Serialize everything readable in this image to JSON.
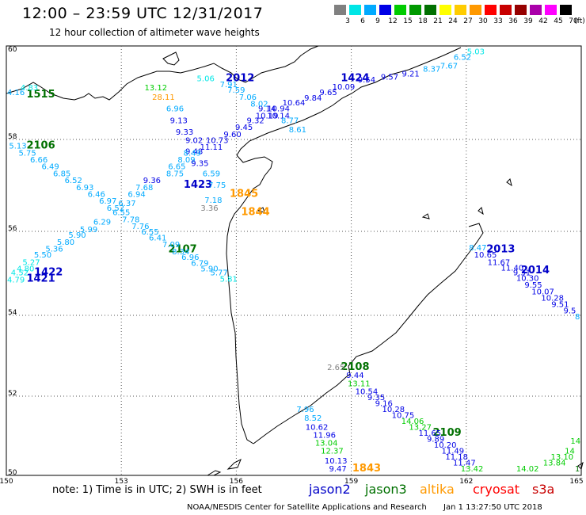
{
  "title": "12:00 – 23:59 UTC 12/31/2017",
  "subtitle": "12 hour collection of altimeter wave heights",
  "legend": {
    "unit": "(ft)",
    "bins": [
      {
        "label": "3",
        "color": "#808080"
      },
      {
        "label": "6",
        "color": "#00e6e6"
      },
      {
        "label": "9",
        "color": "#00aaff"
      },
      {
        "label": "12",
        "color": "#0000e6"
      },
      {
        "label": "15",
        "color": "#00cc00"
      },
      {
        "label": "18",
        "color": "#009900"
      },
      {
        "label": "21",
        "color": "#007000"
      },
      {
        "label": "24",
        "color": "#ffff00"
      },
      {
        "label": "27",
        "color": "#ffcc00"
      },
      {
        "label": "30",
        "color": "#ff9900"
      },
      {
        "label": "33",
        "color": "#ff0000"
      },
      {
        "label": "36",
        "color": "#c80000"
      },
      {
        "label": "39",
        "color": "#960000"
      },
      {
        "label": "42",
        "color": "#aa00aa"
      },
      {
        "label": "45",
        "color": "#ff00ff"
      },
      {
        "label": "70",
        "color": "#000000"
      }
    ]
  },
  "map": {
    "lon_ticks": [
      "150",
      "153",
      "156",
      "159",
      "162",
      "165"
    ],
    "lat_ticks": [
      "60",
      "58",
      "56",
      "54",
      "52",
      "50"
    ]
  },
  "labels": [
    {
      "t": "2012",
      "lon": 156.1,
      "lat": 59.25,
      "c": "#0000c8",
      "big": true
    },
    {
      "t": "1424",
      "lon": 159.1,
      "lat": 59.25,
      "c": "#0000c8",
      "big": true
    },
    {
      "t": "1515",
      "lon": 150.9,
      "lat": 58.9,
      "c": "#007000",
      "big": true
    },
    {
      "t": "2106",
      "lon": 150.9,
      "lat": 57.8,
      "c": "#007000",
      "big": true
    },
    {
      "t": "1423",
      "lon": 155.0,
      "lat": 56.95,
      "c": "#0000c8",
      "big": true
    },
    {
      "t": "1845",
      "lon": 156.2,
      "lat": 56.75,
      "c": "#ff9900",
      "big": true
    },
    {
      "t": "1844",
      "lon": 156.5,
      "lat": 56.35,
      "c": "#ff9900",
      "big": true
    },
    {
      "t": "2107",
      "lon": 154.6,
      "lat": 55.5,
      "c": "#007000",
      "big": true
    },
    {
      "t": "1422",
      "lon": 151.1,
      "lat": 54.95,
      "c": "#0000c8",
      "big": true
    },
    {
      "t": "1421",
      "lon": 150.9,
      "lat": 54.8,
      "c": "#0000c8",
      "big": true
    },
    {
      "t": "2013",
      "lon": 162.9,
      "lat": 55.5,
      "c": "#0000c8",
      "big": true
    },
    {
      "t": "2014",
      "lon": 163.8,
      "lat": 55.0,
      "c": "#0000c8",
      "big": true
    },
    {
      "t": "2108",
      "lon": 159.1,
      "lat": 52.65,
      "c": "#007000",
      "big": true
    },
    {
      "t": "2109",
      "lon": 161.5,
      "lat": 51.0,
      "c": "#007000",
      "big": true
    },
    {
      "t": "1843",
      "lon": 159.4,
      "lat": 50.1,
      "c": "#ff9900",
      "big": true
    },
    {
      "t": "6.52",
      "lon": 161.9,
      "lat": 59.7,
      "c": "#00aaff"
    },
    {
      "t": "5.03",
      "lon": 162.25,
      "lat": 59.82,
      "c": "#00e6e6"
    },
    {
      "t": "7.67",
      "lon": 161.55,
      "lat": 59.52,
      "c": "#00aaff"
    },
    {
      "t": "8.37",
      "lon": 161.1,
      "lat": 59.45,
      "c": "#00aaff"
    },
    {
      "t": "9.21",
      "lon": 160.55,
      "lat": 59.35,
      "c": "#0000e6"
    },
    {
      "t": "9.57",
      "lon": 160.0,
      "lat": 59.28,
      "c": "#0000e6"
    },
    {
      "t": "9.54",
      "lon": 159.4,
      "lat": 59.22,
      "c": "#0000e6"
    },
    {
      "t": "10.09",
      "lon": 158.8,
      "lat": 59.07,
      "c": "#0000e6"
    },
    {
      "t": "9.65",
      "lon": 158.4,
      "lat": 58.95,
      "c": "#0000e6"
    },
    {
      "t": "9.84",
      "lon": 158.0,
      "lat": 58.83,
      "c": "#0000e6"
    },
    {
      "t": "10.64",
      "lon": 157.5,
      "lat": 58.73,
      "c": "#0000e6"
    },
    {
      "t": "10.94",
      "lon": 157.1,
      "lat": 58.6,
      "c": "#0000e6"
    },
    {
      "t": "9.14",
      "lon": 156.8,
      "lat": 58.6,
      "c": "#0000e6"
    },
    {
      "t": "10.19",
      "lon": 156.8,
      "lat": 58.45,
      "c": "#0000e6"
    },
    {
      "t": "10.14",
      "lon": 157.1,
      "lat": 58.45,
      "c": "#0000e6"
    },
    {
      "t": "8.77",
      "lon": 157.4,
      "lat": 58.35,
      "c": "#00aaff"
    },
    {
      "t": "8.61",
      "lon": 157.6,
      "lat": 58.15,
      "c": "#00aaff"
    },
    {
      "t": "9.32",
      "lon": 156.5,
      "lat": 58.35,
      "c": "#0000e6"
    },
    {
      "t": "9.45",
      "lon": 156.2,
      "lat": 58.2,
      "c": "#0000e6"
    },
    {
      "t": "9.60",
      "lon": 155.9,
      "lat": 58.05,
      "c": "#0000e6"
    },
    {
      "t": "10.73",
      "lon": 155.5,
      "lat": 57.92,
      "c": "#0000e6"
    },
    {
      "t": "11.11",
      "lon": 155.35,
      "lat": 57.78,
      "c": "#0000e6"
    },
    {
      "t": "9.02",
      "lon": 154.9,
      "lat": 57.92,
      "c": "#0000e6"
    },
    {
      "t": "9.48",
      "lon": 154.9,
      "lat": 57.68,
      "c": "#0000e6"
    },
    {
      "t": "8.49",
      "lon": 154.85,
      "lat": 57.65,
      "c": "#00aaff"
    },
    {
      "t": "8.09",
      "lon": 154.7,
      "lat": 57.5,
      "c": "#00aaff"
    },
    {
      "t": "9.35",
      "lon": 155.05,
      "lat": 57.42,
      "c": "#0000e6"
    },
    {
      "t": "6.59",
      "lon": 155.35,
      "lat": 57.2,
      "c": "#00aaff"
    },
    {
      "t": "8.75",
      "lon": 154.4,
      "lat": 57.2,
      "c": "#00aaff"
    },
    {
      "t": "6.65",
      "lon": 154.45,
      "lat": 57.35,
      "c": "#00aaff"
    },
    {
      "t": "9.36",
      "lon": 153.8,
      "lat": 57.05,
      "c": "#0000e6"
    },
    {
      "t": "7.68",
      "lon": 153.6,
      "lat": 56.9,
      "c": "#00aaff"
    },
    {
      "t": "7.75",
      "lon": 155.5,
      "lat": 56.95,
      "c": "#00aaff"
    },
    {
      "t": "7.18",
      "lon": 155.4,
      "lat": 56.62,
      "c": "#00aaff"
    },
    {
      "t": "3.36",
      "lon": 155.3,
      "lat": 56.45,
      "c": "#808080"
    },
    {
      "t": "7.06",
      "lon": 156.3,
      "lat": 58.85,
      "c": "#00aaff"
    },
    {
      "t": "8.02",
      "lon": 156.6,
      "lat": 58.7,
      "c": "#00aaff"
    },
    {
      "t": "7.59",
      "lon": 156.0,
      "lat": 59.0,
      "c": "#00aaff"
    },
    {
      "t": "7.91",
      "lon": 155.8,
      "lat": 59.12,
      "c": "#00aaff"
    },
    {
      "t": "5.06",
      "lon": 155.2,
      "lat": 59.25,
      "c": "#00e6e6"
    },
    {
      "t": "13.12",
      "lon": 153.9,
      "lat": 59.05,
      "c": "#00cc00"
    },
    {
      "t": "28.11",
      "lon": 154.1,
      "lat": 58.85,
      "c": "#ff9900"
    },
    {
      "t": "6.96",
      "lon": 154.4,
      "lat": 58.6,
      "c": "#00aaff"
    },
    {
      "t": "9.13",
      "lon": 154.5,
      "lat": 58.35,
      "c": "#0000e6"
    },
    {
      "t": "9.33",
      "lon": 154.65,
      "lat": 58.1,
      "c": "#0000e6"
    },
    {
      "t": "4.16",
      "lon": 150.25,
      "lat": 58.95,
      "c": "#00aaff"
    },
    {
      "t": "4.83",
      "lon": 150.6,
      "lat": 59.05,
      "c": "#00e6e6"
    },
    {
      "t": "5.13",
      "lon": 150.3,
      "lat": 57.8,
      "c": "#00aaff"
    },
    {
      "t": "5.75",
      "lon": 150.55,
      "lat": 57.65,
      "c": "#00aaff"
    },
    {
      "t": "6.66",
      "lon": 150.85,
      "lat": 57.5,
      "c": "#00aaff"
    },
    {
      "t": "6.49",
      "lon": 151.15,
      "lat": 57.35,
      "c": "#00aaff"
    },
    {
      "t": "6.85",
      "lon": 151.45,
      "lat": 57.2,
      "c": "#00aaff"
    },
    {
      "t": "6.52",
      "lon": 151.75,
      "lat": 57.05,
      "c": "#00aaff"
    },
    {
      "t": "6.93",
      "lon": 152.05,
      "lat": 56.9,
      "c": "#00aaff"
    },
    {
      "t": "6.46",
      "lon": 152.35,
      "lat": 56.75,
      "c": "#00aaff"
    },
    {
      "t": "6.97",
      "lon": 152.65,
      "lat": 56.6,
      "c": "#00aaff"
    },
    {
      "t": "6.94",
      "lon": 153.4,
      "lat": 56.75,
      "c": "#00aaff"
    },
    {
      "t": "6.37",
      "lon": 153.15,
      "lat": 56.55,
      "c": "#00aaff"
    },
    {
      "t": "6.52",
      "lon": 152.85,
      "lat": 56.45,
      "c": "#00aaff"
    },
    {
      "t": "6.55",
      "lon": 153.0,
      "lat": 56.35,
      "c": "#00aaff"
    },
    {
      "t": "7.78",
      "lon": 153.25,
      "lat": 56.2,
      "c": "#00aaff"
    },
    {
      "t": "7.76",
      "lon": 153.5,
      "lat": 56.05,
      "c": "#00aaff"
    },
    {
      "t": "6.55",
      "lon": 153.75,
      "lat": 55.92,
      "c": "#00aaff"
    },
    {
      "t": "6.41",
      "lon": 153.95,
      "lat": 55.78,
      "c": "#00aaff"
    },
    {
      "t": "7.09",
      "lon": 154.3,
      "lat": 55.62,
      "c": "#00aaff"
    },
    {
      "t": "8.34",
      "lon": 154.55,
      "lat": 55.45,
      "c": "#00aaff"
    },
    {
      "t": "6.96",
      "lon": 154.8,
      "lat": 55.32,
      "c": "#00aaff"
    },
    {
      "t": "6.79",
      "lon": 155.05,
      "lat": 55.18,
      "c": "#00aaff"
    },
    {
      "t": "5.90",
      "lon": 155.3,
      "lat": 55.05,
      "c": "#00aaff"
    },
    {
      "t": "5.77",
      "lon": 155.55,
      "lat": 54.95,
      "c": "#00aaff"
    },
    {
      "t": "5.81",
      "lon": 155.8,
      "lat": 54.8,
      "c": "#00e6e6"
    },
    {
      "t": "6.29",
      "lon": 152.5,
      "lat": 56.15,
      "c": "#00aaff"
    },
    {
      "t": "5.99",
      "lon": 152.15,
      "lat": 55.98,
      "c": "#00aaff"
    },
    {
      "t": "5.90",
      "lon": 151.85,
      "lat": 55.85,
      "c": "#00aaff"
    },
    {
      "t": "5.80",
      "lon": 151.55,
      "lat": 55.68,
      "c": "#00aaff"
    },
    {
      "t": "5.36",
      "lon": 151.25,
      "lat": 55.52,
      "c": "#00aaff"
    },
    {
      "t": "5.50",
      "lon": 150.95,
      "lat": 55.38,
      "c": "#00aaff"
    },
    {
      "t": "5.27",
      "lon": 150.65,
      "lat": 55.2,
      "c": "#00e6e6"
    },
    {
      "t": "4.80",
      "lon": 150.5,
      "lat": 55.05,
      "c": "#00e6e6"
    },
    {
      "t": "4.52",
      "lon": 150.35,
      "lat": 54.95,
      "c": "#00e6e6"
    },
    {
      "t": "4.79",
      "lon": 150.25,
      "lat": 54.78,
      "c": "#00e6e6"
    },
    {
      "t": "8.47",
      "lon": 162.3,
      "lat": 55.55,
      "c": "#00aaff"
    },
    {
      "t": "10.65",
      "lon": 162.5,
      "lat": 55.38,
      "c": "#0000e6"
    },
    {
      "t": "11.67",
      "lon": 162.85,
      "lat": 55.2,
      "c": "#0000e6"
    },
    {
      "t": "11.40",
      "lon": 163.2,
      "lat": 55.07,
      "c": "#0000e6"
    },
    {
      "t": "9.31",
      "lon": 163.45,
      "lat": 54.95,
      "c": "#0000e6"
    },
    {
      "t": "10.30",
      "lon": 163.6,
      "lat": 54.82,
      "c": "#0000e6"
    },
    {
      "t": "9.55",
      "lon": 163.75,
      "lat": 54.66,
      "c": "#0000e6"
    },
    {
      "t": "10.07",
      "lon": 164.0,
      "lat": 54.5,
      "c": "#0000e6"
    },
    {
      "t": "10.28",
      "lon": 164.25,
      "lat": 54.35,
      "c": "#0000e6"
    },
    {
      "t": "9.51",
      "lon": 164.45,
      "lat": 54.2,
      "c": "#0000e6"
    },
    {
      "t": "9.5",
      "lon": 164.7,
      "lat": 54.05,
      "c": "#0000e6"
    },
    {
      "t": "8",
      "lon": 164.9,
      "lat": 53.9,
      "c": "#00aaff"
    },
    {
      "t": "2.65",
      "lon": 158.6,
      "lat": 52.65,
      "c": "#808080"
    },
    {
      "t": "9.44",
      "lon": 159.1,
      "lat": 52.45,
      "c": "#0000e6"
    },
    {
      "t": "13.11",
      "lon": 159.2,
      "lat": 52.25,
      "c": "#00cc00"
    },
    {
      "t": "10.54",
      "lon": 159.4,
      "lat": 52.05,
      "c": "#0000e6"
    },
    {
      "t": "9.35",
      "lon": 159.65,
      "lat": 51.9,
      "c": "#0000e6"
    },
    {
      "t": "9.16",
      "lon": 159.85,
      "lat": 51.75,
      "c": "#0000e6"
    },
    {
      "t": "10.28",
      "lon": 160.1,
      "lat": 51.6,
      "c": "#0000e6"
    },
    {
      "t": "10.75",
      "lon": 160.35,
      "lat": 51.45,
      "c": "#0000e6"
    },
    {
      "t": "14.06",
      "lon": 160.6,
      "lat": 51.3,
      "c": "#00cc00"
    },
    {
      "t": "13.27",
      "lon": 160.8,
      "lat": 51.15,
      "c": "#00cc00"
    },
    {
      "t": "11.65",
      "lon": 161.05,
      "lat": 51.0,
      "c": "#0000e6"
    },
    {
      "t": "9.89",
      "lon": 161.2,
      "lat": 50.85,
      "c": "#0000e6"
    },
    {
      "t": "10.20",
      "lon": 161.45,
      "lat": 50.7,
      "c": "#0000e6"
    },
    {
      "t": "11.49",
      "lon": 161.65,
      "lat": 50.55,
      "c": "#0000e6"
    },
    {
      "t": "11.18",
      "lon": 161.75,
      "lat": 50.4,
      "c": "#0000e6"
    },
    {
      "t": "11.47",
      "lon": 161.95,
      "lat": 50.25,
      "c": "#0000e6"
    },
    {
      "t": "13.42",
      "lon": 162.15,
      "lat": 50.1,
      "c": "#00cc00"
    },
    {
      "t": "14.02",
      "lon": 163.6,
      "lat": 50.1,
      "c": "#00cc00"
    },
    {
      "t": "1",
      "lon": 164.9,
      "lat": 50.1,
      "c": "#007000"
    },
    {
      "t": "13.84",
      "lon": 164.3,
      "lat": 50.25,
      "c": "#00cc00"
    },
    {
      "t": "13.10",
      "lon": 164.5,
      "lat": 50.4,
      "c": "#00cc00"
    },
    {
      "t": "14",
      "lon": 164.7,
      "lat": 50.55,
      "c": "#00cc00"
    },
    {
      "t": "14",
      "lon": 164.85,
      "lat": 50.8,
      "c": "#00cc00"
    },
    {
      "t": "7.96",
      "lon": 157.8,
      "lat": 51.6,
      "c": "#00aaff"
    },
    {
      "t": "8.52",
      "lon": 158.0,
      "lat": 51.38,
      "c": "#00aaff"
    },
    {
      "t": "10.62",
      "lon": 158.1,
      "lat": 51.15,
      "c": "#0000e6"
    },
    {
      "t": "11.96",
      "lon": 158.3,
      "lat": 50.95,
      "c": "#0000e6"
    },
    {
      "t": "13.04",
      "lon": 158.35,
      "lat": 50.75,
      "c": "#00cc00"
    },
    {
      "t": "12.37",
      "lon": 158.5,
      "lat": 50.55,
      "c": "#00cc00"
    },
    {
      "t": "10.13",
      "lon": 158.6,
      "lat": 50.3,
      "c": "#0000e6"
    },
    {
      "t": "9.47",
      "lon": 158.65,
      "lat": 50.1,
      "c": "#0000e6"
    }
  ],
  "footer": {
    "note": "note:  1) Time is in UTC;  2) SWH is in feet",
    "sats": [
      {
        "name": "jason2",
        "color": "#0000c8"
      },
      {
        "name": "jason3",
        "color": "#007000"
      },
      {
        "name": "altika",
        "color": "#ff9900"
      },
      {
        "name": "cryosat",
        "color": "#ff0000"
      },
      {
        "name": "s3a",
        "color": "#c80000"
      }
    ],
    "credit": "NOAA/NESDIS Center for Satellite Applications and Research",
    "timestamp": "Jan  1 13:27:50 UTC 2018"
  }
}
